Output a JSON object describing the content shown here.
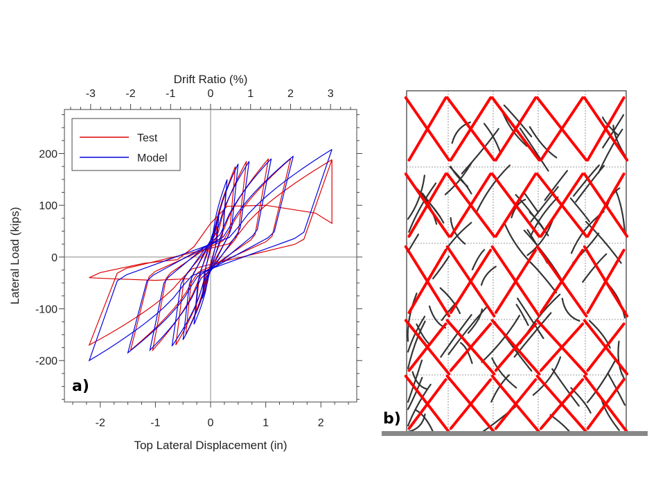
{
  "chart_data": [
    {
      "type": "line",
      "panel_label": "a)",
      "xlabel": "Top Lateral Displacement (in)",
      "ylabel": "Lateral Load (kips)",
      "top_xlabel": "Drift Ratio (%)",
      "xlim": [
        -2.65,
        2.65
      ],
      "ylim": [
        -280,
        285
      ],
      "x_ticks": [
        -2,
        -1,
        0,
        1,
        2
      ],
      "y_ticks": [
        -200,
        -100,
        0,
        100,
        200
      ],
      "top_x_ticks": [
        -3,
        -2,
        -1,
        0,
        1,
        2,
        3
      ],
      "top_tick_inches_per_percent": 0.725,
      "legend": {
        "position": "top-left",
        "entries": [
          "Test",
          "Model"
        ]
      },
      "colors": {
        "Test": "#dd0000",
        "Model": "#0000dd"
      },
      "grid": false,
      "zero_lines": true,
      "series": [
        {
          "name": "Test",
          "loops": [
            {
              "xmax": 0.12,
              "xmin": -0.12,
              "fmax": 60,
              "fmin": -60,
              "pinch": 0.35
            },
            {
              "xmax": 0.28,
              "xmin": -0.27,
              "fmax": 130,
              "fmin": -110,
              "pinch": 0.3
            },
            {
              "xmax": 0.45,
              "xmin": -0.45,
              "fmax": 175,
              "fmin": -150,
              "pinch": 0.25
            },
            {
              "xmax": 0.65,
              "xmin": -0.63,
              "fmax": 185,
              "fmin": -170,
              "pinch": 0.22
            },
            {
              "xmax": 1.05,
              "xmin": -1.05,
              "fmax": 190,
              "fmin": -180,
              "pinch": 0.2
            },
            {
              "xmax": 1.45,
              "xmin": -1.45,
              "fmax": 190,
              "fmin": -180,
              "pinch": 0.18
            },
            {
              "xmax": 2.2,
              "xmin": -2.2,
              "fmax": 188,
              "fmin": -170,
              "pinch": 0.15
            }
          ],
          "final_path": [
            [
              2.2,
              188
            ],
            [
              2.2,
              65
            ],
            [
              1.9,
              85
            ],
            [
              1.0,
              100
            ],
            [
              0.3,
              98
            ],
            [
              0.0,
              65
            ],
            [
              -0.3,
              20
            ],
            [
              -0.6,
              -5
            ],
            [
              -1.2,
              -12
            ],
            [
              -2.0,
              -30
            ],
            [
              -2.2,
              -40
            ],
            [
              -1.8,
              -42
            ],
            [
              -1.0,
              -45
            ],
            [
              -0.4,
              -42
            ]
          ]
        },
        {
          "name": "Model",
          "loops": [
            {
              "xmax": 0.15,
              "xmin": -0.15,
              "fmax": 80,
              "fmin": -80,
              "pinch": 0.4
            },
            {
              "xmax": 0.3,
              "xmin": -0.3,
              "fmax": 150,
              "fmin": -130,
              "pinch": 0.35
            },
            {
              "xmax": 0.5,
              "xmin": -0.5,
              "fmax": 180,
              "fmin": -160,
              "pinch": 0.3
            },
            {
              "xmax": 0.7,
              "xmin": -0.7,
              "fmax": 185,
              "fmin": -172,
              "pinch": 0.28
            },
            {
              "xmax": 1.1,
              "xmin": -1.1,
              "fmax": 190,
              "fmin": -180,
              "pinch": 0.25
            },
            {
              "xmax": 1.5,
              "xmin": -1.5,
              "fmax": 195,
              "fmin": -185,
              "pinch": 0.22
            },
            {
              "xmax": 2.2,
              "xmin": -2.2,
              "fmax": 208,
              "fmin": -200,
              "pinch": 0.2
            }
          ]
        }
      ]
    },
    {
      "type": "diagram",
      "panel_label": "b)",
      "description_free": true,
      "grid": {
        "columns": 5,
        "rows": 5
      },
      "colors": {
        "frame": "#333333",
        "grid": "#777777",
        "dense_cracks": "#333333",
        "model_cracks": "#ff0000",
        "ground": "#888888"
      }
    }
  ]
}
